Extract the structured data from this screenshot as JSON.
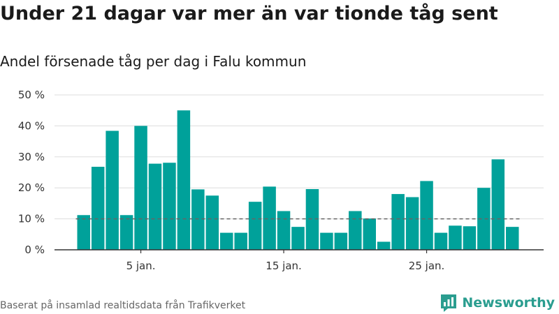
{
  "title": "Under 21 dagar var mer än var tionde tåg sent",
  "subtitle": "Andel försenade tåg per dag i Falu kommun",
  "footer": "Baserat på insamlad realtidsdata från Trafikverket",
  "brand": {
    "name": "Newsworthy",
    "icon": "newsworthy-logo-icon"
  },
  "colors": {
    "bar": "#00a19a",
    "grid": "#dddddd",
    "reference": "#666666",
    "axis": "#333333"
  },
  "chart_data": {
    "type": "bar",
    "categories": [
      "1",
      "2",
      "3",
      "4",
      "5",
      "6",
      "7",
      "8",
      "9",
      "10",
      "11",
      "12",
      "13",
      "14",
      "15",
      "16",
      "17",
      "18",
      "19",
      "20",
      "21",
      "22",
      "23",
      "24",
      "25",
      "26",
      "27",
      "28",
      "29",
      "30",
      "31"
    ],
    "values": [
      11.2,
      26.8,
      38.4,
      11.2,
      40.0,
      27.8,
      28.1,
      45.0,
      19.5,
      17.5,
      5.5,
      5.5,
      15.5,
      20.4,
      12.5,
      7.4,
      19.6,
      5.5,
      5.5,
      12.5,
      10.1,
      2.6,
      18.0,
      17.0,
      22.2,
      5.5,
      7.8,
      7.6,
      20.0,
      29.2,
      7.4
    ],
    "reference_line": 10,
    "xticks": [
      {
        "category": "5",
        "label": "5 jan."
      },
      {
        "category": "15",
        "label": "15 jan."
      },
      {
        "category": "25",
        "label": "25 jan."
      }
    ],
    "yticks": [
      0,
      10,
      20,
      30,
      40,
      50
    ],
    "ytick_labels": [
      "0 %",
      "10 %",
      "20 %",
      "30 %",
      "40 %",
      "50 %"
    ],
    "ylim": [
      0,
      50
    ],
    "grid": true,
    "legend": "none"
  }
}
